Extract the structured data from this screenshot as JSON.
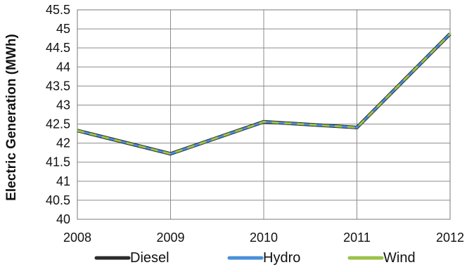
{
  "chart_data": {
    "type": "line",
    "ylabel": "Electric Generation (MWh)",
    "xlabel": "",
    "categories": [
      "2008",
      "2009",
      "2010",
      "2011",
      "2012"
    ],
    "ylim": [
      40,
      45.5
    ],
    "ytick_step": 0.5,
    "yticks": [
      "40",
      "40.5",
      "41",
      "41.5",
      "42",
      "42.5",
      "43",
      "43.5",
      "44",
      "44.5",
      "45",
      "45.5"
    ],
    "grid": true,
    "legend_position": "bottom",
    "series": [
      {
        "name": "Diesel",
        "color": "#2b2b2b",
        "values": [
          42.33,
          41.72,
          42.56,
          42.41,
          44.87
        ]
      },
      {
        "name": "Hydro",
        "color": "#4a90d9",
        "values": [
          42.33,
          41.72,
          42.56,
          42.41,
          44.87
        ]
      },
      {
        "name": "Wind",
        "color": "#9bc24a",
        "values": [
          42.33,
          41.72,
          42.56,
          42.41,
          44.87
        ]
      }
    ]
  }
}
